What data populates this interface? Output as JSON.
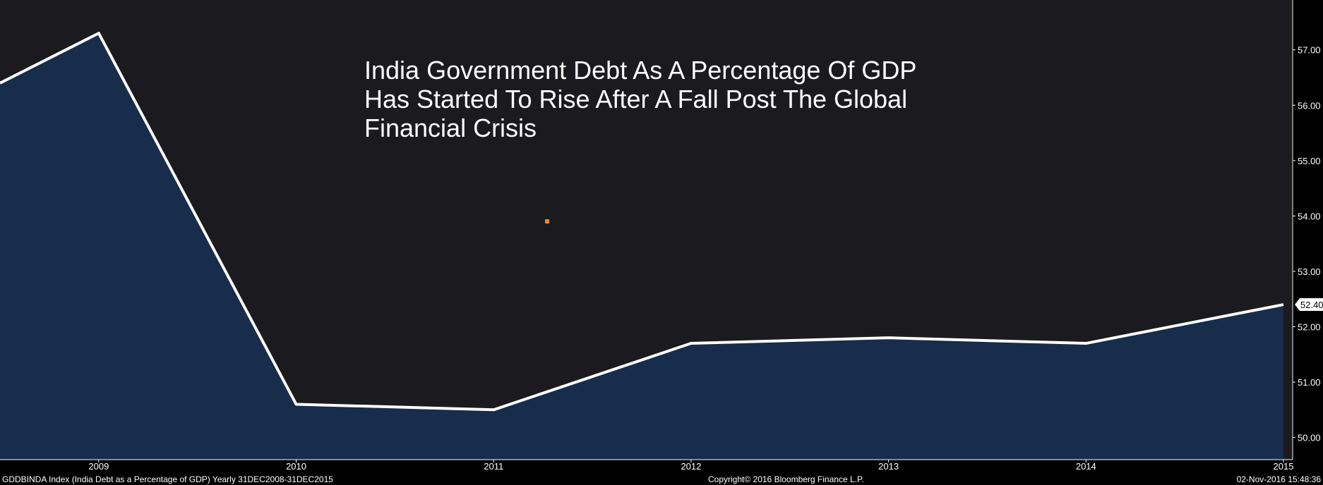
{
  "chart_data": {
    "type": "area",
    "title_lines": [
      "India Government Debt As A Percentage Of GDP",
      "Has Started To Rise After A Fall Post The Global",
      "Financial Crisis"
    ],
    "x": [
      2008.5,
      2009,
      2010,
      2011,
      2012,
      2013,
      2014,
      2015
    ],
    "y": [
      56.4,
      57.3,
      50.6,
      50.5,
      51.7,
      51.8,
      51.7,
      52.4
    ],
    "x_ticks": [
      "2009",
      "2010",
      "2011",
      "2012",
      "2013",
      "2014",
      "2015"
    ],
    "y_ticks": [
      "57.00",
      "56.00",
      "55.00",
      "54.00",
      "53.00",
      "52.00",
      "51.00",
      "50.00"
    ],
    "xlim": [
      2008.5,
      2015
    ],
    "ylim": [
      49.6,
      57.9
    ],
    "last_value_label": "52.40",
    "y_axis_side": "right",
    "grid": false,
    "colors": {
      "background": "#000000",
      "plot_background": "#1b1a1f",
      "area_fill": "#172d4b",
      "line": "#ffffff",
      "marker": "#e88a1a"
    }
  },
  "footer": {
    "left": "GDDBINDA Index (India Debt as a Percentage of GDP)  Yearly 31DEC2008-31DEC2015",
    "center": "Copyright© 2016 Bloomberg Finance L.P.",
    "right": "02-Nov-2016 15:48:36"
  }
}
